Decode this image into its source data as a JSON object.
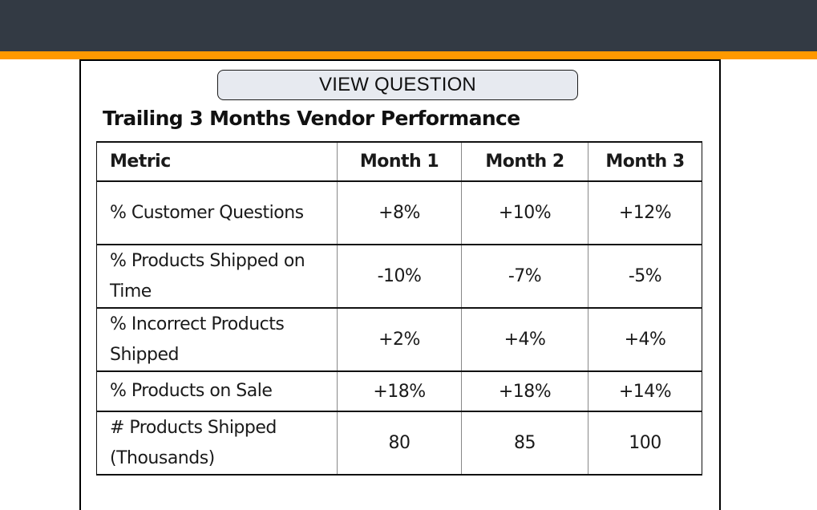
{
  "header": {
    "bar_color": "#333a44",
    "accent_color": "#ff9900"
  },
  "view_question_button": {
    "label": "VIEW QUESTION"
  },
  "document": {
    "title": "Trailing 3 Months Vendor Performance",
    "table": {
      "columns": [
        "Metric",
        "Month 1",
        "Month 2",
        "Month 3"
      ],
      "rows": [
        {
          "metric": "% Customer Questions",
          "values": [
            "+8%",
            "+10%",
            "+12%"
          ]
        },
        {
          "metric": "% Products Shipped on Time",
          "values": [
            "-10%",
            "-7%",
            "-5%"
          ]
        },
        {
          "metric": "% Incorrect Products Shipped",
          "values": [
            "+2%",
            "+4%",
            "+4%"
          ]
        },
        {
          "metric": "% Products on Sale",
          "values": [
            "+18%",
            "+18%",
            "+14%"
          ]
        },
        {
          "metric": "# Products Shipped (Thousands)",
          "values": [
            "80",
            "85",
            "100"
          ]
        }
      ]
    }
  }
}
